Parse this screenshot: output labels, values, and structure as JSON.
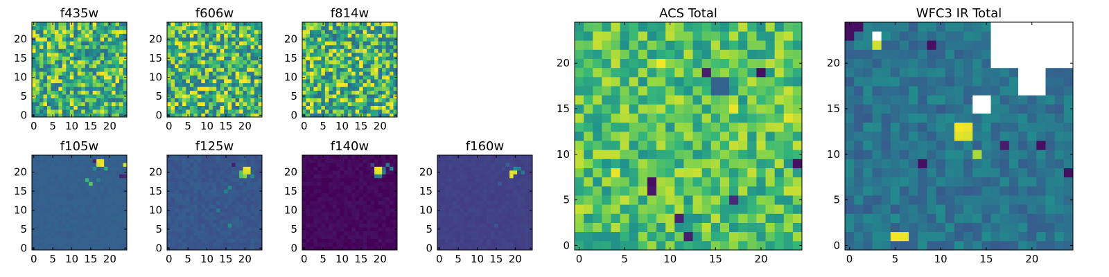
{
  "chart_data": [
    {
      "id": "f435w",
      "type": "heatmap",
      "title": "f435w",
      "grid_size": 25,
      "xlim": [
        0,
        24
      ],
      "ylim": [
        0,
        24
      ],
      "x_tick_labels": [
        "0",
        "5",
        "10",
        "15",
        "20"
      ],
      "y_tick_labels": [
        "0",
        "5",
        "10",
        "15",
        "20"
      ],
      "pattern": "noise",
      "colormap": "viridis",
      "value_range": [
        0.0,
        1.0
      ],
      "background_level": 0.72,
      "noise_amplitude": 0.28,
      "seed": 11,
      "notable_cells": []
    },
    {
      "id": "f606w",
      "type": "heatmap",
      "title": "f606w",
      "grid_size": 25,
      "xlim": [
        0,
        24
      ],
      "ylim": [
        0,
        24
      ],
      "x_tick_labels": [
        "0",
        "5",
        "10",
        "15",
        "20"
      ],
      "y_tick_labels": [
        "0",
        "5",
        "10",
        "15",
        "20"
      ],
      "pattern": "noise",
      "colormap": "viridis",
      "value_range": [
        0.0,
        1.0
      ],
      "background_level": 0.74,
      "noise_amplitude": 0.3,
      "seed": 23,
      "notable_cells": []
    },
    {
      "id": "f814w",
      "type": "heatmap",
      "title": "f814w",
      "grid_size": 25,
      "xlim": [
        0,
        24
      ],
      "ylim": [
        0,
        24
      ],
      "x_tick_labels": [
        "0",
        "5",
        "10",
        "15",
        "20"
      ],
      "y_tick_labels": [
        "0",
        "5",
        "10",
        "15",
        "20"
      ],
      "pattern": "noise",
      "colormap": "viridis",
      "value_range": [
        0.0,
        1.0
      ],
      "background_level": 0.73,
      "noise_amplitude": 0.3,
      "seed": 37,
      "notable_cells": []
    },
    {
      "id": "f105w",
      "type": "heatmap",
      "title": "f105w",
      "grid_size": 25,
      "xlim": [
        0,
        24
      ],
      "ylim": [
        0,
        24
      ],
      "x_tick_labels": [
        "0",
        "5",
        "10",
        "15",
        "20"
      ],
      "y_tick_labels": [
        "0",
        "5",
        "10",
        "15",
        "20"
      ],
      "pattern": "flat",
      "colormap": "viridis",
      "value_range": [
        0.0,
        1.0
      ],
      "background_level": 0.38,
      "noise_amplitude": 0.02,
      "seed": 41,
      "notable_cells": [
        {
          "col": 17,
          "row": 23,
          "value": 0.98
        },
        {
          "col": 18,
          "row": 23,
          "value": 0.97
        },
        {
          "col": 17,
          "row": 22,
          "value": 0.95
        },
        {
          "col": 18,
          "row": 22,
          "value": 0.99
        },
        {
          "col": 16,
          "row": 23,
          "value": 0.12
        },
        {
          "col": 16,
          "row": 21,
          "value": 0.6
        },
        {
          "col": 19,
          "row": 21,
          "value": 0.72
        },
        {
          "col": 24,
          "row": 22,
          "value": 0.95
        },
        {
          "col": 23,
          "row": 19,
          "value": 0.12
        },
        {
          "col": 24,
          "row": 19,
          "value": 0.15
        },
        {
          "col": 14,
          "row": 18,
          "value": 0.75
        },
        {
          "col": 15,
          "row": 17,
          "value": 0.8
        },
        {
          "col": 17,
          "row": 18,
          "value": 0.55
        }
      ]
    },
    {
      "id": "f125w",
      "type": "heatmap",
      "title": "f125w",
      "grid_size": 25,
      "xlim": [
        0,
        24
      ],
      "ylim": [
        0,
        24
      ],
      "x_tick_labels": [
        "0",
        "5",
        "10",
        "15",
        "20"
      ],
      "y_tick_labels": [
        "0",
        "5",
        "10",
        "15",
        "20"
      ],
      "pattern": "flat",
      "colormap": "viridis",
      "value_range": [
        0.0,
        1.0
      ],
      "background_level": 0.34,
      "noise_amplitude": 0.04,
      "seed": 53,
      "notable_cells": [
        {
          "col": 20,
          "row": 21,
          "value": 0.97
        },
        {
          "col": 21,
          "row": 21,
          "value": 0.99
        },
        {
          "col": 20,
          "row": 20,
          "value": 0.96
        },
        {
          "col": 21,
          "row": 20,
          "value": 0.95
        },
        {
          "col": 19,
          "row": 20,
          "value": 0.8
        },
        {
          "col": 19,
          "row": 19,
          "value": 0.78
        },
        {
          "col": 20,
          "row": 19,
          "value": 0.85
        },
        {
          "col": 17,
          "row": 22,
          "value": 0.1
        },
        {
          "col": 16,
          "row": 16,
          "value": 0.6
        },
        {
          "col": 15,
          "row": 15,
          "value": 0.55
        },
        {
          "col": 22,
          "row": 19,
          "value": 0.6
        },
        {
          "col": 16,
          "row": 6,
          "value": 0.6
        },
        {
          "col": 13,
          "row": 10,
          "value": 0.5
        }
      ]
    },
    {
      "id": "f140w",
      "type": "heatmap",
      "title": "f140w",
      "grid_size": 25,
      "xlim": [
        0,
        24
      ],
      "ylim": [
        0,
        24
      ],
      "x_tick_labels": [
        "0",
        "5",
        "10",
        "15",
        "20"
      ],
      "y_tick_labels": [
        "0",
        "5",
        "10",
        "15",
        "20"
      ],
      "pattern": "flat",
      "colormap": "viridis",
      "value_range": [
        0.0,
        1.0
      ],
      "background_level": 0.03,
      "noise_amplitude": 0.03,
      "seed": 67,
      "notable_cells": [
        {
          "col": 19,
          "row": 21,
          "value": 0.98
        },
        {
          "col": 20,
          "row": 21,
          "value": 0.99
        },
        {
          "col": 19,
          "row": 20,
          "value": 0.95
        },
        {
          "col": 20,
          "row": 20,
          "value": 0.97
        },
        {
          "col": 21,
          "row": 20,
          "value": 0.55
        },
        {
          "col": 21,
          "row": 21,
          "value": 0.45
        },
        {
          "col": 22,
          "row": 22,
          "value": 0.5
        },
        {
          "col": 23,
          "row": 21,
          "value": 0.55
        },
        {
          "col": 19,
          "row": 19,
          "value": 0.5
        },
        {
          "col": 20,
          "row": 19,
          "value": 0.55
        },
        {
          "col": 18,
          "row": 22,
          "value": 0.25
        }
      ]
    },
    {
      "id": "f160w",
      "type": "heatmap",
      "title": "f160w",
      "grid_size": 25,
      "xlim": [
        0,
        24
      ],
      "ylim": [
        0,
        24
      ],
      "x_tick_labels": [
        "0",
        "5",
        "10",
        "15",
        "20"
      ],
      "y_tick_labels": [
        "0",
        "5",
        "10",
        "15",
        "20"
      ],
      "pattern": "flat",
      "colormap": "viridis",
      "value_range": [
        0.0,
        1.0
      ],
      "background_level": 0.24,
      "noise_amplitude": 0.02,
      "seed": 79,
      "notable_cells": [
        {
          "col": 19,
          "row": 20,
          "value": 0.98
        },
        {
          "col": 20,
          "row": 20,
          "value": 0.95
        },
        {
          "col": 19,
          "row": 19,
          "value": 0.97
        },
        {
          "col": 20,
          "row": 21,
          "value": 0.6
        },
        {
          "col": 21,
          "row": 21,
          "value": 0.55
        },
        {
          "col": 22,
          "row": 20,
          "value": 0.5
        },
        {
          "col": 18,
          "row": 22,
          "value": 0.4
        },
        {
          "col": 17,
          "row": 21,
          "value": 0.3
        },
        {
          "col": 16,
          "row": 17,
          "value": 0.35
        },
        {
          "col": 15,
          "row": 6,
          "value": 0.35
        }
      ]
    },
    {
      "id": "acs-total",
      "type": "heatmap",
      "title": "ACS Total",
      "grid_size": 25,
      "xlim": [
        0,
        24
      ],
      "ylim": [
        0,
        24
      ],
      "x_tick_labels": [
        "0",
        "5",
        "10",
        "15",
        "20"
      ],
      "y_tick_labels": [
        "0",
        "5",
        "10",
        "15",
        "20"
      ],
      "pattern": "noise",
      "colormap": "viridis",
      "value_range": [
        0.0,
        1.0
      ],
      "background_level": 0.78,
      "noise_amplitude": 0.16,
      "seed": 97,
      "notable_cells": [
        {
          "col": 14,
          "row": 19,
          "value": 0.1
        },
        {
          "col": 15,
          "row": 18,
          "value": 0.4
        },
        {
          "col": 16,
          "row": 18,
          "value": 0.4
        },
        {
          "col": 15,
          "row": 17,
          "value": 0.4
        },
        {
          "col": 16,
          "row": 17,
          "value": 0.4
        },
        {
          "col": 20,
          "row": 19,
          "value": 0.05
        },
        {
          "col": 8,
          "row": 7,
          "value": 0.05
        },
        {
          "col": 8,
          "row": 6,
          "value": 0.08
        },
        {
          "col": 12,
          "row": 1,
          "value": 0.1
        },
        {
          "col": 11,
          "row": 3,
          "value": 0.12
        },
        {
          "col": 17,
          "row": 5,
          "value": 0.15
        },
        {
          "col": 24,
          "row": 9,
          "value": 0.05
        },
        {
          "col": 4,
          "row": 8,
          "value": 0.98
        },
        {
          "col": 9,
          "row": 20,
          "value": 0.99
        },
        {
          "col": 17,
          "row": 15,
          "value": 0.98
        },
        {
          "col": 23,
          "row": 14,
          "value": 0.97
        }
      ]
    },
    {
      "id": "wfc3-ir-total",
      "type": "heatmap",
      "title": "WFC3 IR Total",
      "grid_size": 25,
      "xlim": [
        0,
        24
      ],
      "ylim": [
        0,
        24
      ],
      "x_tick_labels": [
        "0",
        "5",
        "10",
        "15",
        "20"
      ],
      "y_tick_labels": [
        "0",
        "5",
        "10",
        "15",
        "20"
      ],
      "pattern": "noise",
      "colormap": "viridis",
      "value_range": [
        0.0,
        1.0
      ],
      "background_level": 0.48,
      "noise_amplitude": 0.12,
      "seed": 113,
      "notable_cells": [
        {
          "col": 0,
          "row": 24,
          "value": 0.05
        },
        {
          "col": 1,
          "row": 24,
          "value": 0.05
        },
        {
          "col": 0,
          "row": 23,
          "value": 0.05
        },
        {
          "col": 3,
          "row": 23,
          "value": null
        },
        {
          "col": 3,
          "row": 22,
          "value": 0.95
        },
        {
          "col": 9,
          "row": 22,
          "value": 0.05
        },
        {
          "col": 12,
          "row": 13,
          "value": 0.99
        },
        {
          "col": 13,
          "row": 13,
          "value": 0.98
        },
        {
          "col": 12,
          "row": 12,
          "value": 0.97
        },
        {
          "col": 13,
          "row": 12,
          "value": 0.96
        },
        {
          "col": 5,
          "row": 1,
          "value": 0.99
        },
        {
          "col": 6,
          "row": 1,
          "value": 0.98
        },
        {
          "col": 8,
          "row": 9,
          "value": 0.05
        },
        {
          "col": 17,
          "row": 11,
          "value": 0.1
        },
        {
          "col": 21,
          "row": 11,
          "value": 0.05
        },
        {
          "col": 24,
          "row": 8,
          "value": 0.05
        },
        {
          "col": 14,
          "row": 10,
          "value": 0.9
        }
      ],
      "masked_regions": [
        {
          "col_start": 16,
          "col_end": 24,
          "row_start": 20,
          "row_end": 24
        },
        {
          "col_start": 19,
          "col_end": 21,
          "row_start": 17,
          "row_end": 19
        },
        {
          "col_start": 14,
          "col_end": 15,
          "row_start": 15,
          "row_end": 16
        }
      ]
    }
  ]
}
